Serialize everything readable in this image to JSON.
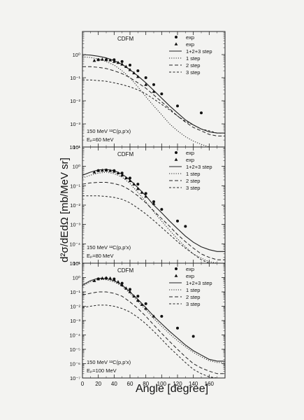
{
  "figure": {
    "ylabel": "d²σ/dEdΩ [mb/MeV sr]",
    "xlabel": "Angle [degree]",
    "xticks": [
      "0",
      "20",
      "40",
      "60",
      "80",
      "100",
      "120",
      "140",
      "160"
    ],
    "xlim": [
      0,
      180
    ]
  },
  "legend_labels": [
    "exp",
    "exp",
    "1+2+3 step",
    "1 step",
    "2 step",
    "3 step"
  ],
  "chart_data": [
    {
      "type": "scatter",
      "title": "CDFM",
      "reaction": "150 MeV ¹²C(p,p'x)",
      "energy_label": "Eₚ=60 MeV",
      "xlim": [
        0,
        180
      ],
      "ylim_exp": [
        -4,
        1
      ],
      "yscale": "log",
      "ytick_labels": [
        "10⁻⁴",
        "10⁻³",
        "10⁻²",
        "10⁻¹",
        "10⁰"
      ],
      "ytick_exps": [
        -4,
        -3,
        -2,
        -1,
        0
      ],
      "series": [
        {
          "name": "exp",
          "marker": "circle",
          "x": [
            20,
            30,
            40,
            50,
            60,
            70,
            80,
            90,
            100,
            120,
            150
          ],
          "y": [
            0.6,
            0.6,
            0.6,
            0.5,
            0.35,
            0.2,
            0.1,
            0.05,
            0.02,
            0.006,
            0.003
          ]
        },
        {
          "name": "exp",
          "marker": "triangle",
          "x": [
            15,
            20,
            25,
            30,
            35,
            40,
            45,
            50,
            55,
            60,
            65,
            70,
            80,
            90
          ],
          "y": [
            0.55,
            0.6,
            0.62,
            0.6,
            0.58,
            0.5,
            0.45,
            0.38,
            0.3,
            0.22,
            0.16,
            0.11,
            0.05,
            0.025
          ]
        },
        {
          "name": "1+2+3 step",
          "style": "solid",
          "x": [
            0,
            10,
            20,
            30,
            40,
            50,
            60,
            70,
            80,
            90,
            100,
            110,
            120,
            130,
            140,
            150,
            160,
            170,
            180
          ],
          "y": [
            1.0,
            0.95,
            0.85,
            0.72,
            0.55,
            0.38,
            0.22,
            0.12,
            0.06,
            0.028,
            0.013,
            0.006,
            0.003,
            0.0015,
            0.0009,
            0.0006,
            0.00045,
            0.0004,
            0.0004
          ]
        },
        {
          "name": "1 step",
          "style": "dotted",
          "x": [
            0,
            10,
            20,
            30,
            40,
            50,
            60,
            70,
            80,
            90,
            100,
            110,
            120,
            130,
            140,
            150,
            160,
            170,
            180
          ],
          "y": [
            0.8,
            0.75,
            0.65,
            0.5,
            0.35,
            0.2,
            0.1,
            0.04,
            0.015,
            0.006,
            0.0025,
            0.001,
            0.0005,
            0.00028,
            0.00018,
            0.00013,
            0.0001,
            9e-05,
            9e-05
          ]
        },
        {
          "name": "2 step",
          "style": "dashed",
          "x": [
            0,
            10,
            20,
            30,
            40,
            50,
            60,
            70,
            80,
            90,
            100,
            110,
            120,
            130,
            140,
            150,
            160,
            170,
            180
          ],
          "y": [
            0.3,
            0.3,
            0.28,
            0.25,
            0.2,
            0.15,
            0.1,
            0.06,
            0.035,
            0.018,
            0.009,
            0.0045,
            0.0022,
            0.0012,
            0.0007,
            0.0005,
            0.00035,
            0.0003,
            0.0003
          ]
        },
        {
          "name": "3 step",
          "style": "shortdash",
          "x": [
            0,
            10,
            20,
            30,
            40,
            50,
            60,
            70,
            80,
            90,
            100,
            110,
            120,
            130,
            140,
            150,
            160,
            170,
            180
          ],
          "y": [
            0.08,
            0.08,
            0.075,
            0.07,
            0.06,
            0.05,
            0.04,
            0.03,
            0.02,
            0.012,
            0.007,
            0.004,
            0.0022,
            0.0013,
            0.0009,
            0.0006,
            0.0005,
            0.0004,
            0.0004
          ]
        }
      ]
    },
    {
      "type": "scatter",
      "title": "CDFM",
      "reaction": "150 MeV ¹²C(p,p'x)",
      "energy_label": "Eₚ=80 MeV",
      "xlim": [
        0,
        180
      ],
      "ylim_exp": [
        -5,
        1
      ],
      "yscale": "log",
      "ytick_labels": [
        "10⁻⁵",
        "10⁻⁴",
        "10⁻³",
        "10⁻²",
        "10⁻¹",
        "10⁰",
        "10¹"
      ],
      "ytick_exps": [
        -5,
        -4,
        -3,
        -2,
        -1,
        0,
        1
      ],
      "series": [
        {
          "name": "exp",
          "marker": "circle",
          "x": [
            20,
            30,
            40,
            50,
            60,
            70,
            80,
            90,
            100,
            120,
            130
          ],
          "y": [
            0.6,
            0.65,
            0.6,
            0.45,
            0.25,
            0.12,
            0.04,
            0.015,
            0.006,
            0.0015,
            0.0008
          ]
        },
        {
          "name": "exp",
          "marker": "triangle",
          "x": [
            15,
            20,
            25,
            30,
            35,
            40,
            45,
            50,
            55,
            60,
            65,
            70,
            75,
            80,
            90
          ],
          "y": [
            0.5,
            0.6,
            0.62,
            0.63,
            0.6,
            0.55,
            0.45,
            0.35,
            0.25,
            0.18,
            0.12,
            0.07,
            0.045,
            0.028,
            0.012
          ]
        },
        {
          "name": "1+2+3 step",
          "style": "solid",
          "x": [
            0,
            10,
            20,
            30,
            40,
            50,
            60,
            70,
            80,
            90,
            100,
            110,
            120,
            130,
            140,
            150,
            160,
            170,
            180
          ],
          "y": [
            0.35,
            0.5,
            0.65,
            0.7,
            0.6,
            0.4,
            0.2,
            0.08,
            0.03,
            0.01,
            0.004,
            0.0015,
            0.0006,
            0.00025,
            0.00012,
            7e-05,
            5e-05,
            4e-05,
            4e-05
          ]
        },
        {
          "name": "1 step",
          "style": "dotted",
          "x": [
            0,
            10,
            20,
            30,
            40,
            50,
            60,
            70,
            80,
            90,
            100,
            110,
            120,
            130,
            140,
            150,
            160,
            170,
            180
          ],
          "y": [
            0.25,
            0.35,
            0.45,
            0.5,
            0.42,
            0.28,
            0.13,
            0.045,
            0.015,
            0.0045,
            0.0015,
            0.0005,
            0.00018,
            7e-05,
            3e-05,
            1.8e-05,
            1.2e-05,
            1e-05,
            1e-05
          ]
        },
        {
          "name": "2 step",
          "style": "dashed",
          "x": [
            0,
            10,
            20,
            30,
            40,
            50,
            60,
            70,
            80,
            90,
            100,
            110,
            120,
            130,
            140,
            150,
            160,
            170,
            180
          ],
          "y": [
            0.12,
            0.14,
            0.15,
            0.15,
            0.13,
            0.1,
            0.06,
            0.03,
            0.013,
            0.005,
            0.002,
            0.0008,
            0.0003,
            0.00013,
            6e-05,
            3e-05,
            2e-05,
            1.5e-05,
            1.5e-05
          ]
        },
        {
          "name": "3 step",
          "style": "shortdash",
          "x": [
            0,
            10,
            20,
            30,
            40,
            50,
            60,
            70,
            80,
            90,
            100,
            110,
            120,
            130,
            140,
            150,
            160,
            170,
            180
          ],
          "y": [
            0.03,
            0.03,
            0.03,
            0.028,
            0.025,
            0.02,
            0.013,
            0.007,
            0.0035,
            0.0016,
            0.0007,
            0.0003,
            0.00013,
            6e-05,
            3e-05,
            1.5e-05,
            1e-05,
            8e-06,
            8e-06
          ]
        }
      ]
    },
    {
      "type": "scatter",
      "title": "CDFM",
      "reaction": "150 MeV ¹²C(p,p'x)",
      "energy_label": "Eₚ=100 MeV",
      "xlim": [
        0,
        180
      ],
      "ylim_exp": [
        -7,
        1
      ],
      "yscale": "log",
      "ytick_labels": [
        "10⁻⁷",
        "10⁻⁶",
        "10⁻⁵",
        "10⁻⁴",
        "10⁻³",
        "10⁻²",
        "10⁻¹",
        "10⁰",
        "10¹"
      ],
      "ytick_exps": [
        -7,
        -6,
        -5,
        -4,
        -3,
        -2,
        -1,
        0,
        1
      ],
      "series": [
        {
          "name": "exp",
          "marker": "circle",
          "x": [
            20,
            30,
            40,
            50,
            60,
            70,
            80,
            100,
            120,
            140
          ],
          "y": [
            0.8,
            0.9,
            0.8,
            0.4,
            0.15,
            0.05,
            0.015,
            0.002,
            0.0003,
            8e-05
          ]
        },
        {
          "name": "exp",
          "marker": "triangle",
          "x": [
            15,
            20,
            25,
            30,
            35,
            40,
            45,
            50,
            55,
            60,
            65,
            70,
            75,
            80,
            90
          ],
          "y": [
            0.6,
            0.8,
            0.9,
            0.95,
            0.9,
            0.7,
            0.5,
            0.3,
            0.18,
            0.1,
            0.05,
            0.025,
            0.013,
            0.007,
            0.002
          ]
        },
        {
          "name": "1+2+3 step",
          "style": "solid",
          "x": [
            0,
            10,
            20,
            30,
            40,
            50,
            60,
            70,
            80,
            90,
            100,
            110,
            120,
            130,
            140,
            150,
            160,
            170,
            180
          ],
          "y": [
            0.3,
            0.6,
            0.9,
            0.85,
            0.6,
            0.3,
            0.1,
            0.03,
            0.008,
            0.002,
            0.0006,
            0.00018,
            6e-05,
            2e-05,
            8e-06,
            4e-06,
            2e-06,
            1.5e-06,
            1.5e-06
          ]
        },
        {
          "name": "1 step",
          "style": "dotted",
          "x": [
            0,
            10,
            20,
            30,
            40,
            50,
            60,
            70,
            80,
            90,
            100,
            110,
            120,
            130,
            140,
            150,
            160,
            170,
            180
          ],
          "y": [
            0.25,
            0.5,
            0.75,
            0.7,
            0.5,
            0.25,
            0.08,
            0.022,
            0.0055,
            0.0014,
            0.0004,
            0.00012,
            4e-05,
            1.5e-05,
            6e-06,
            3e-06,
            1.6e-06,
            1.2e-06,
            1.2e-06
          ]
        },
        {
          "name": "2 step",
          "style": "dashed",
          "x": [
            0,
            10,
            20,
            30,
            40,
            50,
            60,
            70,
            80,
            90,
            100,
            110,
            120,
            130,
            140,
            150,
            160,
            170,
            180
          ],
          "y": [
            0.06,
            0.08,
            0.1,
            0.1,
            0.08,
            0.05,
            0.02,
            0.007,
            0.002,
            0.0005,
            0.00013,
            3.5e-05,
            1e-05,
            3e-06,
            1e-06,
            5e-07,
            3e-07,
            2e-07,
            2e-07
          ]
        },
        {
          "name": "3 step",
          "style": "shortdash",
          "x": [
            0,
            10,
            20,
            30,
            40,
            50,
            60,
            70,
            80,
            90,
            100,
            110,
            120,
            130,
            140,
            150,
            160,
            170,
            180
          ],
          "y": [
            0.008,
            0.01,
            0.012,
            0.012,
            0.01,
            0.007,
            0.004,
            0.0017,
            0.0006,
            0.00018,
            5e-05,
            1.3e-05,
            4e-06,
            1.2e-06,
            4e-07,
            2e-07,
            1.2e-07,
            1e-07,
            1e-07
          ]
        }
      ]
    }
  ]
}
